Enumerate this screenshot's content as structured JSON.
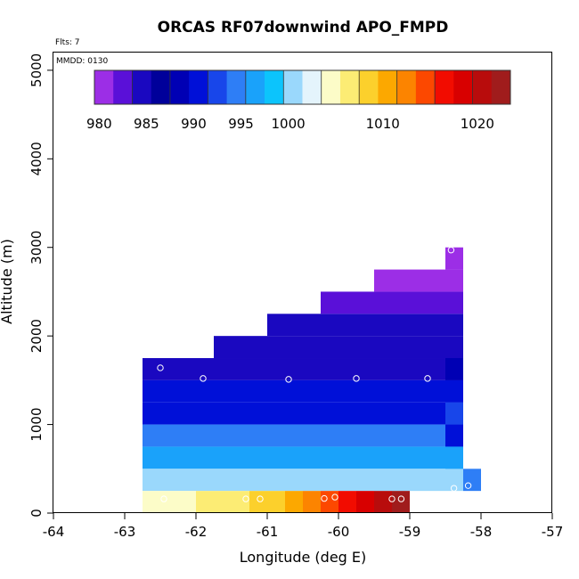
{
  "chart_data": {
    "type": "heatmap",
    "title": "ORCAS RF07downwind APO_FMPD",
    "xlabel": "Longitude (deg E)",
    "ylabel": "Altitude (m)",
    "flights_note": "Flts: 7",
    "date_note": "MMDD: 0130",
    "xlim": [
      -64,
      -57
    ],
    "ylim": [
      0,
      5200
    ],
    "xticks": [
      -64,
      -63,
      -62,
      -61,
      -60,
      -59,
      -58,
      -57
    ],
    "yticks": [
      0,
      1000,
      2000,
      3000,
      4000,
      5000
    ],
    "colorbar": {
      "min": 979.5,
      "max": 1023.5,
      "ticks": [
        980,
        985,
        990,
        995,
        1000,
        1010,
        1020
      ],
      "colors": [
        "#9c2ee6",
        "#5a10d8",
        "#1a08c0",
        "#00009a",
        "#0000b4",
        "#0010d8",
        "#1846ea",
        "#2e7ef6",
        "#1aa2fa",
        "#0cc4fc",
        "#9ad8fc",
        "#e4f4fc",
        "#fcfcc8",
        "#fcec74",
        "#fcd02c",
        "#fca800",
        "#fc8400",
        "#fc4800",
        "#f20c00",
        "#d80000",
        "#b80c0c",
        "#a01c1c"
      ]
    },
    "cells": [
      {
        "x0": -62.75,
        "x1": -58.25,
        "y0": 1500,
        "y1": 1750,
        "v": 985.3
      },
      {
        "x0": -62.75,
        "x1": -58.25,
        "y0": 1250,
        "y1": 1500,
        "v": 989.8
      },
      {
        "x0": -62.75,
        "x1": -58.25,
        "y0": 1000,
        "y1": 1250,
        "v": 990.8
      },
      {
        "x0": -62.75,
        "x1": -58.25,
        "y0": 750,
        "y1": 1000,
        "v": 993.8
      },
      {
        "x0": -62.75,
        "x1": -58.25,
        "y0": 500,
        "y1": 750,
        "v": 997.3
      },
      {
        "x0": -62.75,
        "x1": -58.25,
        "y0": 250,
        "y1": 500,
        "v": 999.5
      },
      {
        "x0": -61.75,
        "x1": -58.25,
        "y0": 1750,
        "y1": 2000,
        "v": 984.0
      },
      {
        "x0": -61.0,
        "x1": -58.25,
        "y0": 2000,
        "y1": 2250,
        "v": 983.5
      },
      {
        "x0": -60.25,
        "x1": -58.25,
        "y0": 2250,
        "y1": 2500,
        "v": 982.3
      },
      {
        "x0": -59.5,
        "x1": -58.25,
        "y0": 2500,
        "y1": 2750,
        "v": 981.3
      },
      {
        "x0": -58.5,
        "x1": -58.25,
        "y0": 2750,
        "y1": 3000,
        "v": 979.6
      },
      {
        "x0": -58.5,
        "x1": -58.25,
        "y0": 1500,
        "y1": 1750,
        "v": 988.5
      },
      {
        "x0": -58.5,
        "x1": -58.25,
        "y0": 1250,
        "y1": 1500,
        "v": 990.5
      },
      {
        "x0": -58.5,
        "x1": -58.25,
        "y0": 1000,
        "y1": 1250,
        "v": 991.8
      },
      {
        "x0": -58.5,
        "x1": -58.25,
        "y0": 750,
        "y1": 1000,
        "v": 991.2
      },
      {
        "x0": -58.5,
        "x1": -58.25,
        "y0": 500,
        "y1": 750,
        "v": 996.0
      },
      {
        "x0": -58.25,
        "x1": -58.0,
        "y0": 250,
        "y1": 500,
        "v": 995.3
      },
      {
        "x0": -62.75,
        "x1": -62.5,
        "y0": 0,
        "y1": 250,
        "v": 1004.0
      },
      {
        "x0": -62.5,
        "x1": -62.25,
        "y0": 0,
        "y1": 250,
        "v": 1004.6
      },
      {
        "x0": -62.25,
        "x1": -62.0,
        "y0": 0,
        "y1": 250,
        "v": 1005.3
      },
      {
        "x0": -62.0,
        "x1": -61.75,
        "y0": 0,
        "y1": 250,
        "v": 1006.0
      },
      {
        "x0": -61.75,
        "x1": -61.5,
        "y0": 0,
        "y1": 250,
        "v": 1006.5
      },
      {
        "x0": -61.5,
        "x1": -61.25,
        "y0": 0,
        "y1": 250,
        "v": 1007.2
      },
      {
        "x0": -61.25,
        "x1": -61.0,
        "y0": 0,
        "y1": 250,
        "v": 1007.8
      },
      {
        "x0": -61.0,
        "x1": -60.75,
        "y0": 0,
        "y1": 250,
        "v": 1009.0
      },
      {
        "x0": -60.75,
        "x1": -60.5,
        "y0": 0,
        "y1": 250,
        "v": 1011.0
      },
      {
        "x0": -60.5,
        "x1": -60.25,
        "y0": 0,
        "y1": 250,
        "v": 1012.5
      },
      {
        "x0": -60.25,
        "x1": -60.0,
        "y0": 0,
        "y1": 250,
        "v": 1014.5
      },
      {
        "x0": -60.0,
        "x1": -59.75,
        "y0": 0,
        "y1": 250,
        "v": 1016.0
      },
      {
        "x0": -59.75,
        "x1": -59.5,
        "y0": 0,
        "y1": 250,
        "v": 1017.5
      },
      {
        "x0": -59.5,
        "x1": -59.25,
        "y0": 0,
        "y1": 250,
        "v": 1019.5
      },
      {
        "x0": -59.25,
        "x1": -59.0,
        "y0": 0,
        "y1": 250,
        "v": 1021.5
      }
    ],
    "samples": [
      {
        "lon": -62.5,
        "alt": 1640
      },
      {
        "lon": -61.9,
        "alt": 1520
      },
      {
        "lon": -60.7,
        "alt": 1510
      },
      {
        "lon": -59.75,
        "alt": 1520
      },
      {
        "lon": -58.75,
        "alt": 1520
      },
      {
        "lon": -58.42,
        "alt": 2970
      },
      {
        "lon": -58.38,
        "alt": 280
      },
      {
        "lon": -58.18,
        "alt": 310
      },
      {
        "lon": -62.45,
        "alt": 160
      },
      {
        "lon": -61.3,
        "alt": 160
      },
      {
        "lon": -61.1,
        "alt": 160
      },
      {
        "lon": -60.2,
        "alt": 165
      },
      {
        "lon": -60.05,
        "alt": 180
      },
      {
        "lon": -59.25,
        "alt": 160
      },
      {
        "lon": -59.12,
        "alt": 160
      }
    ]
  }
}
